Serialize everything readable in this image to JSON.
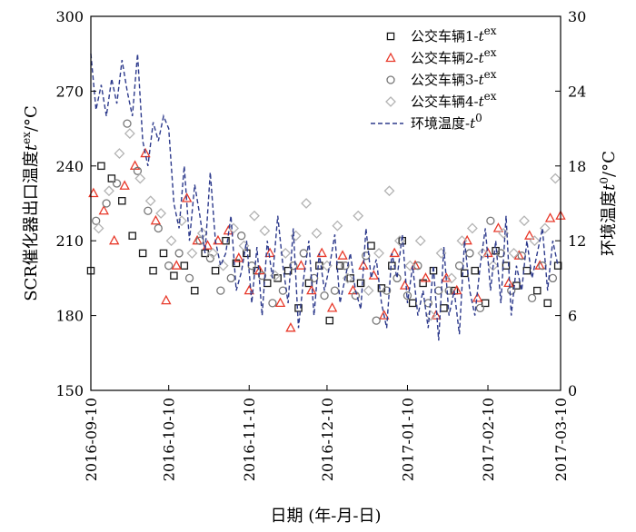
{
  "chart_data": {
    "type": "scatter",
    "xlabel": "日期 (年-月-日)",
    "ylabel_left": "SCR催化器出口温度t^ex/°C",
    "ylabel_right": "环境温度t^0/°C",
    "xlim": [
      "2016-09-10",
      "2017-03-10"
    ],
    "x_ticks": [
      "2016-09-10",
      "2016-10-10",
      "2016-11-10",
      "2016-12-10",
      "2017-01-10",
      "2017-02-10",
      "2017-03-10"
    ],
    "ylim_left": [
      150,
      300
    ],
    "y_ticks_left": [
      150,
      180,
      210,
      240,
      270,
      300
    ],
    "ylim_right": [
      0,
      30
    ],
    "y_ticks_right": [
      0,
      6,
      12,
      18,
      24,
      30
    ],
    "legend_placement": "top-right",
    "grid": false,
    "series": [
      {
        "name": "公交车辆1-t^ex",
        "marker": "square",
        "color": "#1a1a1a",
        "axis": "left",
        "x": [
          "2016-09-10",
          "2016-09-14",
          "2016-09-18",
          "2016-09-22",
          "2016-09-26",
          "2016-09-30",
          "2016-10-04",
          "2016-10-08",
          "2016-10-12",
          "2016-10-16",
          "2016-10-20",
          "2016-10-24",
          "2016-10-28",
          "2016-11-01",
          "2016-11-05",
          "2016-11-09",
          "2016-11-13",
          "2016-11-17",
          "2016-11-21",
          "2016-11-25",
          "2016-11-29",
          "2016-12-03",
          "2016-12-07",
          "2016-12-11",
          "2016-12-15",
          "2016-12-19",
          "2016-12-23",
          "2016-12-27",
          "2016-12-31",
          "2017-01-04",
          "2017-01-08",
          "2017-01-12",
          "2017-01-16",
          "2017-01-20",
          "2017-01-24",
          "2017-01-28",
          "2017-02-01",
          "2017-02-05",
          "2017-02-09",
          "2017-02-13",
          "2017-02-17",
          "2017-02-21",
          "2017-02-25",
          "2017-03-01",
          "2017-03-05",
          "2017-03-09"
        ],
        "values": [
          198,
          240,
          235,
          226,
          212,
          205,
          198,
          205,
          196,
          200,
          190,
          205,
          198,
          210,
          201,
          205,
          198,
          193,
          195,
          198,
          183,
          193,
          200,
          178,
          200,
          195,
          193,
          208,
          191,
          200,
          210,
          185,
          193,
          198,
          183,
          190,
          197,
          198,
          185,
          206,
          200,
          192,
          198,
          190,
          185,
          200
        ]
      },
      {
        "name": "公交车辆2-t^ex",
        "marker": "triangle",
        "color": "#e8392a",
        "axis": "left",
        "x": [
          "2016-09-11",
          "2016-09-15",
          "2016-09-19",
          "2016-09-23",
          "2016-09-27",
          "2016-10-01",
          "2016-10-05",
          "2016-10-09",
          "2016-10-13",
          "2016-10-17",
          "2016-10-21",
          "2016-10-25",
          "2016-10-29",
          "2016-11-02",
          "2016-11-06",
          "2016-11-10",
          "2016-11-14",
          "2016-11-18",
          "2016-11-22",
          "2016-11-26",
          "2016-11-30",
          "2016-12-04",
          "2016-12-08",
          "2016-12-12",
          "2016-12-16",
          "2016-12-20",
          "2016-12-24",
          "2016-12-28",
          "2017-01-01",
          "2017-01-05",
          "2017-01-09",
          "2017-01-13",
          "2017-01-17",
          "2017-01-21",
          "2017-01-25",
          "2017-01-29",
          "2017-02-02",
          "2017-02-06",
          "2017-02-10",
          "2017-02-14",
          "2017-02-18",
          "2017-02-22",
          "2017-02-26",
          "2017-03-02",
          "2017-03-06",
          "2017-03-10"
        ],
        "values": [
          229,
          222,
          210,
          232,
          240,
          245,
          218,
          186,
          200,
          227,
          210,
          208,
          210,
          214,
          203,
          190,
          198,
          205,
          185,
          175,
          200,
          190,
          205,
          183,
          204,
          190,
          200,
          196,
          180,
          205,
          192,
          200,
          195,
          180,
          195,
          190,
          210,
          187,
          205,
          215,
          193,
          204,
          212,
          200,
          219,
          220
        ]
      },
      {
        "name": "公交车辆3-t^ex",
        "marker": "circle",
        "color": "#777777",
        "axis": "left",
        "x": [
          "2016-09-12",
          "2016-09-16",
          "2016-09-20",
          "2016-09-24",
          "2016-09-28",
          "2016-10-02",
          "2016-10-06",
          "2016-10-10",
          "2016-10-14",
          "2016-10-18",
          "2016-10-22",
          "2016-10-26",
          "2016-10-30",
          "2016-11-03",
          "2016-11-07",
          "2016-11-11",
          "2016-11-15",
          "2016-11-19",
          "2016-11-23",
          "2016-11-27",
          "2016-12-01",
          "2016-12-05",
          "2016-12-09",
          "2016-12-13",
          "2016-12-17",
          "2016-12-21",
          "2016-12-25",
          "2016-12-29",
          "2017-01-02",
          "2017-01-06",
          "2017-01-10",
          "2017-01-14",
          "2017-01-18",
          "2017-01-22",
          "2017-01-26",
          "2017-01-30",
          "2017-02-03",
          "2017-02-07",
          "2017-02-11",
          "2017-02-15",
          "2017-02-19",
          "2017-02-23",
          "2017-02-27",
          "2017-03-03",
          "2017-03-07"
        ],
        "values": [
          218,
          225,
          233,
          257,
          238,
          222,
          215,
          200,
          205,
          195,
          210,
          203,
          190,
          195,
          212,
          200,
          196,
          185,
          190,
          200,
          205,
          195,
          188,
          190,
          200,
          188,
          204,
          178,
          190,
          195,
          188,
          200,
          185,
          190,
          190,
          200,
          205,
          183,
          218,
          205,
          190,
          204,
          187,
          200,
          195
        ]
      },
      {
        "name": "公交车辆4-t^ex",
        "marker": "diamond",
        "color": "#b3b3b3",
        "axis": "left",
        "x": [
          "2016-09-13",
          "2016-09-17",
          "2016-09-21",
          "2016-09-25",
          "2016-09-29",
          "2016-10-03",
          "2016-10-07",
          "2016-10-11",
          "2016-10-15",
          "2016-10-19",
          "2016-10-23",
          "2016-10-27",
          "2016-10-31",
          "2016-11-04",
          "2016-11-08",
          "2016-11-12",
          "2016-11-16",
          "2016-11-20",
          "2016-11-24",
          "2016-11-28",
          "2016-12-02",
          "2016-12-06",
          "2016-12-10",
          "2016-12-14",
          "2016-12-18",
          "2016-12-22",
          "2016-12-26",
          "2016-12-30",
          "2017-01-03",
          "2017-01-07",
          "2017-01-11",
          "2017-01-15",
          "2017-01-19",
          "2017-01-23",
          "2017-01-27",
          "2017-01-31",
          "2017-02-04",
          "2017-02-08",
          "2017-02-12",
          "2017-02-16",
          "2017-02-20",
          "2017-02-24",
          "2017-02-28",
          "2017-03-04",
          "2017-03-08"
        ],
        "values": [
          215,
          230,
          245,
          253,
          235,
          226,
          221,
          210,
          218,
          205,
          213,
          205,
          200,
          215,
          208,
          220,
          214,
          196,
          205,
          212,
          225,
          213,
          200,
          216,
          195,
          220,
          190,
          205,
          230,
          210,
          200,
          210,
          180,
          205,
          195,
          210,
          215,
          205,
          200,
          213,
          205,
          218,
          210,
          215,
          235
        ]
      },
      {
        "name": "环境温度-t^0",
        "marker": "dashed-line",
        "color": "#2d3a8c",
        "axis": "right",
        "x": [
          "2016-09-10",
          "2016-09-12",
          "2016-09-14",
          "2016-09-16",
          "2016-09-18",
          "2016-09-20",
          "2016-09-22",
          "2016-09-24",
          "2016-09-26",
          "2016-09-28",
          "2016-09-30",
          "2016-10-02",
          "2016-10-04",
          "2016-10-06",
          "2016-10-08",
          "2016-10-10",
          "2016-10-12",
          "2016-10-14",
          "2016-10-16",
          "2016-10-18",
          "2016-10-20",
          "2016-10-22",
          "2016-10-24",
          "2016-10-26",
          "2016-10-28",
          "2016-10-30",
          "2016-11-01",
          "2016-11-03",
          "2016-11-05",
          "2016-11-07",
          "2016-11-09",
          "2016-11-11",
          "2016-11-13",
          "2016-11-15",
          "2016-11-17",
          "2016-11-19",
          "2016-11-21",
          "2016-11-23",
          "2016-11-25",
          "2016-11-27",
          "2016-11-29",
          "2016-12-01",
          "2016-12-03",
          "2016-12-05",
          "2016-12-07",
          "2016-12-09",
          "2016-12-11",
          "2016-12-13",
          "2016-12-15",
          "2016-12-17",
          "2016-12-19",
          "2016-12-21",
          "2016-12-23",
          "2016-12-25",
          "2016-12-27",
          "2016-12-29",
          "2016-12-31",
          "2017-01-02",
          "2017-01-04",
          "2017-01-06",
          "2017-01-08",
          "2017-01-10",
          "2017-01-12",
          "2017-01-14",
          "2017-01-16",
          "2017-01-18",
          "2017-01-20",
          "2017-01-22",
          "2017-01-24",
          "2017-01-26",
          "2017-01-28",
          "2017-01-30",
          "2017-02-01",
          "2017-02-03",
          "2017-02-05",
          "2017-02-07",
          "2017-02-09",
          "2017-02-11",
          "2017-02-13",
          "2017-02-15",
          "2017-02-17",
          "2017-02-19",
          "2017-02-21",
          "2017-02-23",
          "2017-02-25",
          "2017-02-27",
          "2017-03-01",
          "2017-03-03",
          "2017-03-05",
          "2017-03-07",
          "2017-03-09"
        ],
        "values": [
          27,
          22.5,
          24.5,
          22,
          25,
          23,
          26.5,
          24,
          22,
          27,
          20,
          18,
          21.5,
          20,
          22,
          21,
          15,
          13,
          18,
          12,
          16.5,
          14,
          11,
          17.5,
          12,
          10,
          11,
          14,
          8,
          9.5,
          12,
          7,
          11.5,
          6,
          12,
          9,
          14,
          10,
          7,
          13,
          5,
          9,
          12,
          6,
          11,
          8,
          10,
          12.5,
          7,
          9,
          11,
          8,
          6.5,
          13,
          9,
          10.5,
          7,
          5,
          11,
          9,
          12.5,
          7,
          10,
          6,
          8,
          5,
          10,
          4,
          11.5,
          6,
          8,
          4.5,
          12,
          8,
          6,
          10,
          13,
          8,
          12,
          7,
          14,
          6,
          10,
          8,
          12,
          9,
          11,
          13,
          8,
          12,
          10
        ]
      }
    ]
  }
}
